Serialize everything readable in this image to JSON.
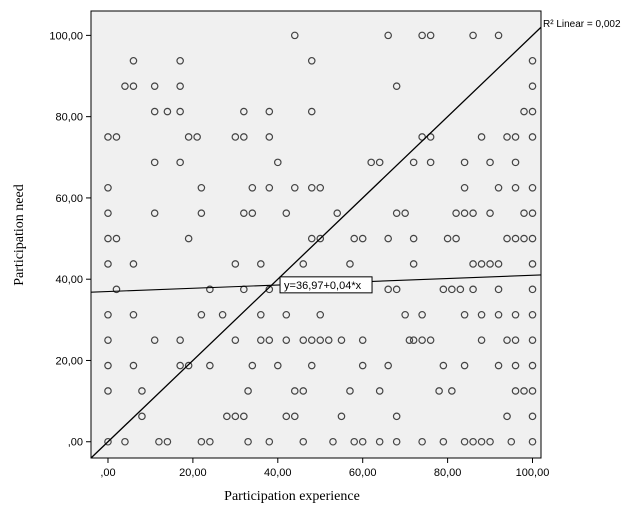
{
  "chart_data": {
    "type": "scatter",
    "title": "",
    "xlabel": "Participation experience",
    "ylabel": "Participation need",
    "xlim": [
      -4,
      102
    ],
    "ylim": [
      -4,
      106
    ],
    "xticks": [
      0,
      20,
      40,
      60,
      80,
      100
    ],
    "yticks": [
      0,
      20,
      40,
      60,
      80,
      100
    ],
    "xtick_labels": [
      ",00",
      "20,00",
      "40,00",
      "60,00",
      "80,00",
      "100,00"
    ],
    "ytick_labels": [
      ",00",
      "20,00",
      "40,00",
      "60,00",
      "80,00",
      "100,00"
    ],
    "background_color": "#f0f0f0",
    "marker_color": "#444444",
    "line_color": "#000000",
    "grid": false,
    "rsq_label": "R² Linear = 0,002",
    "fit_equation": "y=36,97+0,04*x",
    "fit_line": {
      "intercept": 36.97,
      "slope": 0.04
    },
    "reference_line": {
      "from": [
        0,
        0
      ],
      "to": [
        100,
        100
      ]
    },
    "points": [
      [
        0,
        0
      ],
      [
        0,
        12.5
      ],
      [
        0,
        18.75
      ],
      [
        0,
        25
      ],
      [
        0,
        31.25
      ],
      [
        0,
        43.75
      ],
      [
        0,
        50
      ],
      [
        0,
        56.25
      ],
      [
        0,
        62.5
      ],
      [
        0,
        75
      ],
      [
        2,
        75
      ],
      [
        2,
        50
      ],
      [
        2,
        37.5
      ],
      [
        4,
        0
      ],
      [
        4,
        87.5
      ],
      [
        6,
        93.75
      ],
      [
        6,
        87.5
      ],
      [
        6,
        43.75
      ],
      [
        6,
        31.25
      ],
      [
        6,
        18.75
      ],
      [
        8,
        12.5
      ],
      [
        8,
        6.25
      ],
      [
        11,
        87.5
      ],
      [
        11,
        81.25
      ],
      [
        11,
        68.75
      ],
      [
        11,
        56.25
      ],
      [
        11,
        25
      ],
      [
        12,
        0
      ],
      [
        14,
        0
      ],
      [
        14,
        81.25
      ],
      [
        17,
        93.75
      ],
      [
        17,
        87.5
      ],
      [
        17,
        81.25
      ],
      [
        17,
        68.75
      ],
      [
        17,
        25
      ],
      [
        17,
        18.75
      ],
      [
        19,
        75
      ],
      [
        19,
        50
      ],
      [
        19,
        18.75
      ],
      [
        21,
        75
      ],
      [
        22,
        62.5
      ],
      [
        22,
        56.25
      ],
      [
        22,
        31.25
      ],
      [
        22,
        0
      ],
      [
        24,
        37.5
      ],
      [
        24,
        18.75
      ],
      [
        24,
        0
      ],
      [
        27,
        31.25
      ],
      [
        28,
        6.25
      ],
      [
        30,
        75
      ],
      [
        30,
        43.75
      ],
      [
        30,
        25
      ],
      [
        30,
        6.25
      ],
      [
        32,
        81.25
      ],
      [
        32,
        75
      ],
      [
        32,
        56.25
      ],
      [
        32,
        37.5
      ],
      [
        32,
        6.25
      ],
      [
        33,
        12.5
      ],
      [
        33,
        0
      ],
      [
        34,
        62.5
      ],
      [
        34,
        56.25
      ],
      [
        34,
        18.75
      ],
      [
        36,
        43.75
      ],
      [
        36,
        31.25
      ],
      [
        36,
        25
      ],
      [
        38,
        81.25
      ],
      [
        38,
        75
      ],
      [
        38,
        62.5
      ],
      [
        38,
        37.5
      ],
      [
        38,
        25
      ],
      [
        38,
        0
      ],
      [
        40,
        68.75
      ],
      [
        40,
        18.75
      ],
      [
        42,
        56.25
      ],
      [
        42,
        31.25
      ],
      [
        42,
        25
      ],
      [
        42,
        6.25
      ],
      [
        44,
        100
      ],
      [
        44,
        62.5
      ],
      [
        44,
        12.5
      ],
      [
        44,
        6.25
      ],
      [
        46,
        43.75
      ],
      [
        46,
        25
      ],
      [
        46,
        12.5
      ],
      [
        46,
        0
      ],
      [
        48,
        93.75
      ],
      [
        48,
        81.25
      ],
      [
        48,
        62.5
      ],
      [
        48,
        50
      ],
      [
        48,
        25
      ],
      [
        48,
        18.75
      ],
      [
        50,
        62.5
      ],
      [
        50,
        50
      ],
      [
        50,
        31.25
      ],
      [
        50,
        25
      ],
      [
        52,
        37.5
      ],
      [
        52,
        25
      ],
      [
        53,
        0
      ],
      [
        54,
        56.25
      ],
      [
        55,
        25
      ],
      [
        55,
        6.25
      ],
      [
        57,
        43.75
      ],
      [
        57,
        12.5
      ],
      [
        58,
        50
      ],
      [
        58,
        0
      ],
      [
        60,
        50
      ],
      [
        60,
        25
      ],
      [
        60,
        18.75
      ],
      [
        60,
        0
      ],
      [
        62,
        68.75
      ],
      [
        64,
        68.75
      ],
      [
        64,
        12.5
      ],
      [
        64,
        0
      ],
      [
        66,
        100
      ],
      [
        66,
        50
      ],
      [
        66,
        37.5
      ],
      [
        66,
        18.75
      ],
      [
        68,
        87.5
      ],
      [
        68,
        56.25
      ],
      [
        68,
        37.5
      ],
      [
        68,
        6.25
      ],
      [
        68,
        0
      ],
      [
        70,
        56.25
      ],
      [
        70,
        31.25
      ],
      [
        71,
        25
      ],
      [
        72,
        68.75
      ],
      [
        72,
        50
      ],
      [
        72,
        43.75
      ],
      [
        72,
        25
      ],
      [
        74,
        100
      ],
      [
        74,
        75
      ],
      [
        74,
        31.25
      ],
      [
        74,
        25
      ],
      [
        74,
        0
      ],
      [
        76,
        100
      ],
      [
        76,
        75
      ],
      [
        76,
        68.75
      ],
      [
        76,
        25
      ],
      [
        78,
        12.5
      ],
      [
        79,
        37.5
      ],
      [
        79,
        18.75
      ],
      [
        79,
        0
      ],
      [
        80,
        50
      ],
      [
        81,
        37.5
      ],
      [
        81,
        12.5
      ],
      [
        82,
        56.25
      ],
      [
        82,
        50
      ],
      [
        83,
        37.5
      ],
      [
        84,
        68.75
      ],
      [
        84,
        62.5
      ],
      [
        84,
        56.25
      ],
      [
        84,
        31.25
      ],
      [
        84,
        18.75
      ],
      [
        84,
        0
      ],
      [
        86,
        100
      ],
      [
        86,
        56.25
      ],
      [
        86,
        43.75
      ],
      [
        86,
        37.5
      ],
      [
        86,
        0
      ],
      [
        88,
        75
      ],
      [
        88,
        43.75
      ],
      [
        88,
        31.25
      ],
      [
        88,
        25
      ],
      [
        88,
        0
      ],
      [
        90,
        68.75
      ],
      [
        90,
        56.25
      ],
      [
        90,
        43.75
      ],
      [
        90,
        0
      ],
      [
        92,
        100
      ],
      [
        92,
        62.5
      ],
      [
        92,
        43.75
      ],
      [
        92,
        37.5
      ],
      [
        92,
        31.25
      ],
      [
        92,
        18.75
      ],
      [
        94,
        75
      ],
      [
        94,
        50
      ],
      [
        94,
        25
      ],
      [
        94,
        6.25
      ],
      [
        95,
        0
      ],
      [
        96,
        75
      ],
      [
        96,
        68.75
      ],
      [
        96,
        62.5
      ],
      [
        96,
        50
      ],
      [
        96,
        31.25
      ],
      [
        96,
        25
      ],
      [
        96,
        18.75
      ],
      [
        96,
        12.5
      ],
      [
        98,
        81.25
      ],
      [
        98,
        56.25
      ],
      [
        98,
        50
      ],
      [
        98,
        12.5
      ],
      [
        100,
        93.75
      ],
      [
        100,
        87.5
      ],
      [
        100,
        81.25
      ],
      [
        100,
        75
      ],
      [
        100,
        62.5
      ],
      [
        100,
        56.25
      ],
      [
        100,
        50
      ],
      [
        100,
        43.75
      ],
      [
        100,
        37.5
      ],
      [
        100,
        31.25
      ],
      [
        100,
        25
      ],
      [
        100,
        18.75
      ],
      [
        100,
        12.5
      ],
      [
        100,
        6.25
      ],
      [
        100,
        0
      ]
    ]
  }
}
